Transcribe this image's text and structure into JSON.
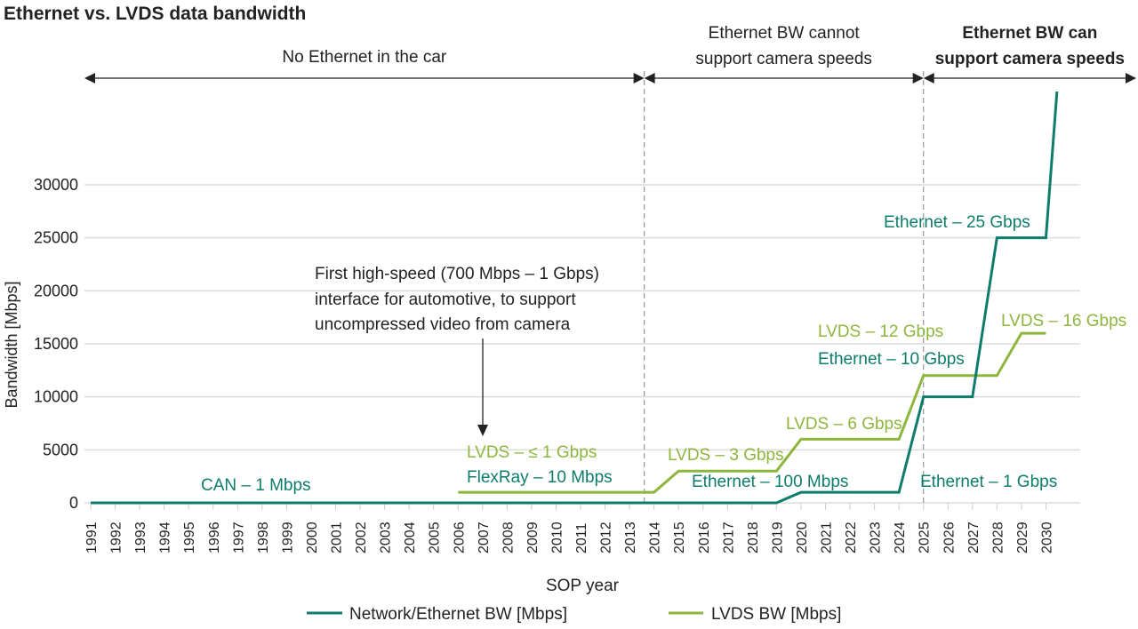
{
  "chart_data": {
    "type": "line",
    "title": "Ethernet vs. LVDS data bandwidth",
    "xlabel": "SOP year",
    "ylabel": "Bandwidth [Mbps]",
    "xlim": [
      1991,
      2030
    ],
    "ylim": [
      0,
      30000
    ],
    "x_ticks": [
      1991,
      1992,
      1993,
      1994,
      1995,
      1996,
      1997,
      1998,
      1999,
      2000,
      2001,
      2002,
      2003,
      2004,
      2005,
      2006,
      2007,
      2008,
      2009,
      2010,
      2011,
      2012,
      2013,
      2014,
      2015,
      2016,
      2017,
      2018,
      2019,
      2020,
      2021,
      2022,
      2023,
      2024,
      2025,
      2026,
      2027,
      2028,
      2029,
      2030
    ],
    "y_ticks": [
      0,
      5000,
      10000,
      15000,
      20000,
      25000,
      30000
    ],
    "grid": "horizontal",
    "legend_position": "bottom",
    "series": [
      {
        "name": "Network/Ethernet BW [Mbps]",
        "color": "#0e7c6b",
        "x": [
          1991,
          2019,
          2020,
          2024,
          2025,
          2027,
          2028,
          2030,
          2030.45
        ],
        "y": [
          1,
          1,
          1000,
          1000,
          10000,
          10000,
          25000,
          25000,
          38800
        ]
      },
      {
        "name": "LVDS BW [Mbps]",
        "color": "#8db63c",
        "x": [
          2006,
          2014,
          2015,
          2019,
          2020,
          2024,
          2025,
          2028,
          2029,
          2030
        ],
        "y": [
          1000,
          1000,
          3000,
          3000,
          6000,
          6000,
          12000,
          12000,
          16000,
          16000
        ]
      }
    ],
    "annotations": {
      "can": "CAN – 1 Mbps",
      "lvds_1": "LVDS – ≤ 1 Gbps",
      "flexray": "FlexRay – 10 Mbps",
      "lvds_3": "LVDS – 3 Gbps",
      "eth_100": "Ethernet – 100 Mbps",
      "lvds_6": "LVDS – 6 Gbps",
      "lvds_12": "LVDS – 12 Gbps",
      "eth_10g": "Ethernet – 10 Gbps",
      "eth_1g": "Ethernet – 1 Gbps",
      "eth_25g": "Ethernet – 25 Gbps",
      "lvds_16": "LVDS – 16 Gbps",
      "callout": [
        "First high-speed (700 Mbps – 1 Gbps)",
        "interface for automotive, to support",
        "uncompressed video from camera"
      ]
    },
    "eras": [
      {
        "label": [
          "No Ethernet in the car"
        ],
        "from": 1991,
        "to": 2013.6
      },
      {
        "label": [
          "Ethernet BW cannot",
          "support camera speeds"
        ],
        "from": 2013.6,
        "to": 2025
      },
      {
        "label": [
          "Ethernet BW can",
          "support camera speeds"
        ],
        "from": 2025,
        "to": 2030
      }
    ]
  }
}
